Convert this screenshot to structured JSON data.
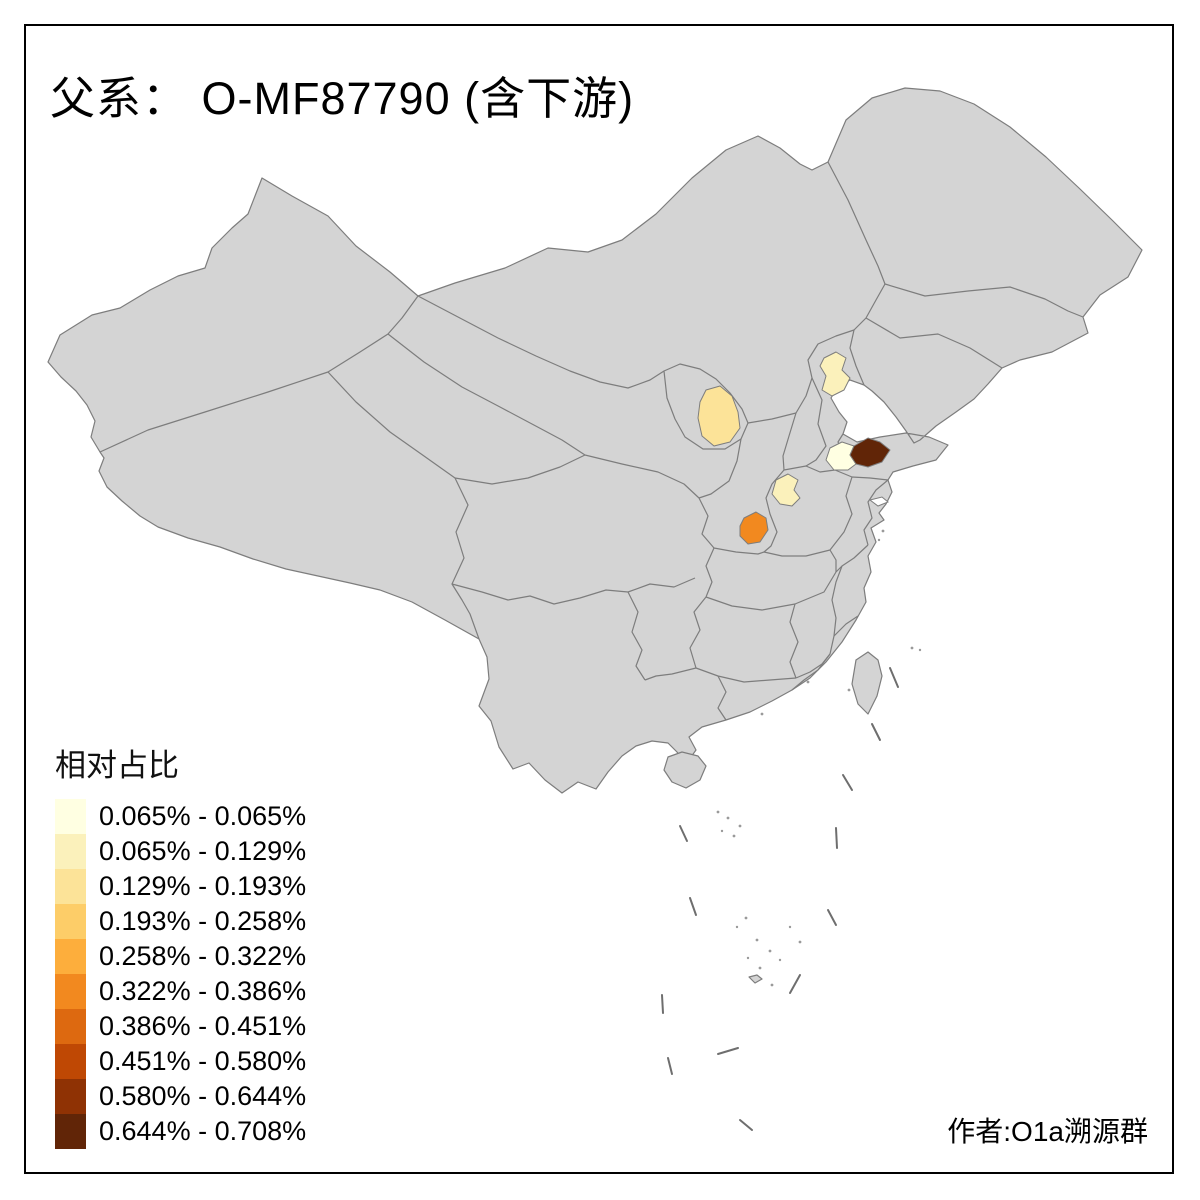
{
  "title": "父系： O-MF87790 (含下游)",
  "author_credit": "作者:O1a溯源群",
  "legend": {
    "title": "相对占比"
  },
  "chart_data": {
    "type": "choropleth",
    "map_region": "China, province and prefecture boundaries",
    "title": "父系： O-MF87790 (含下游)",
    "legend_title": "相对占比",
    "legend_position": "bottom-left",
    "base_land_color": "#D4D4D4",
    "border_color": "#7D7D7D",
    "sea_color": "#FFFFFF",
    "frame_color": "#000000",
    "classes": [
      {
        "range": "0.065% - 0.065%",
        "color": "#FFFFE2"
      },
      {
        "range": "0.065% - 0.129%",
        "color": "#FBF1BB"
      },
      {
        "range": "0.129% - 0.193%",
        "color": "#FCE398"
      },
      {
        "range": "0.193% - 0.258%",
        "color": "#FDCD68"
      },
      {
        "range": "0.258% - 0.322%",
        "color": "#FDAE3C"
      },
      {
        "range": "0.322% - 0.386%",
        "color": "#F2891F"
      },
      {
        "range": "0.386% - 0.451%",
        "color": "#DD6910"
      },
      {
        "range": "0.451% - 0.580%",
        "color": "#BF4804"
      },
      {
        "range": "0.580% - 0.644%",
        "color": "#8F3204"
      },
      {
        "range": "0.644% - 0.708%",
        "color": "#612507"
      }
    ],
    "highlighted_regions": [
      {
        "id": "ningxia-area",
        "position": "north-central (Ningxia)",
        "class_range": "0.129% - 0.193%",
        "color": "#FCE398"
      },
      {
        "id": "beijing-area",
        "position": "north (Beijing)",
        "class_range": "0.065% - 0.129%",
        "color": "#FBF1BB"
      },
      {
        "id": "west-henan-area",
        "position": "central (west Henan)",
        "class_range": "0.065% - 0.129%",
        "color": "#FBF1BB"
      },
      {
        "id": "south-shaanxi-area",
        "position": "central (south Shaanxi)",
        "class_range": "0.322% - 0.386%",
        "color": "#F2891F"
      },
      {
        "id": "shandong-west-area",
        "position": "east (west of Shandong peninsula)",
        "class_range": "0.065% - 0.065%",
        "color": "#FFFFE2"
      },
      {
        "id": "shandong-east-area",
        "position": "east (east Shandong peninsula)",
        "class_range": "0.644% - 0.708%",
        "color": "#612507"
      }
    ]
  }
}
